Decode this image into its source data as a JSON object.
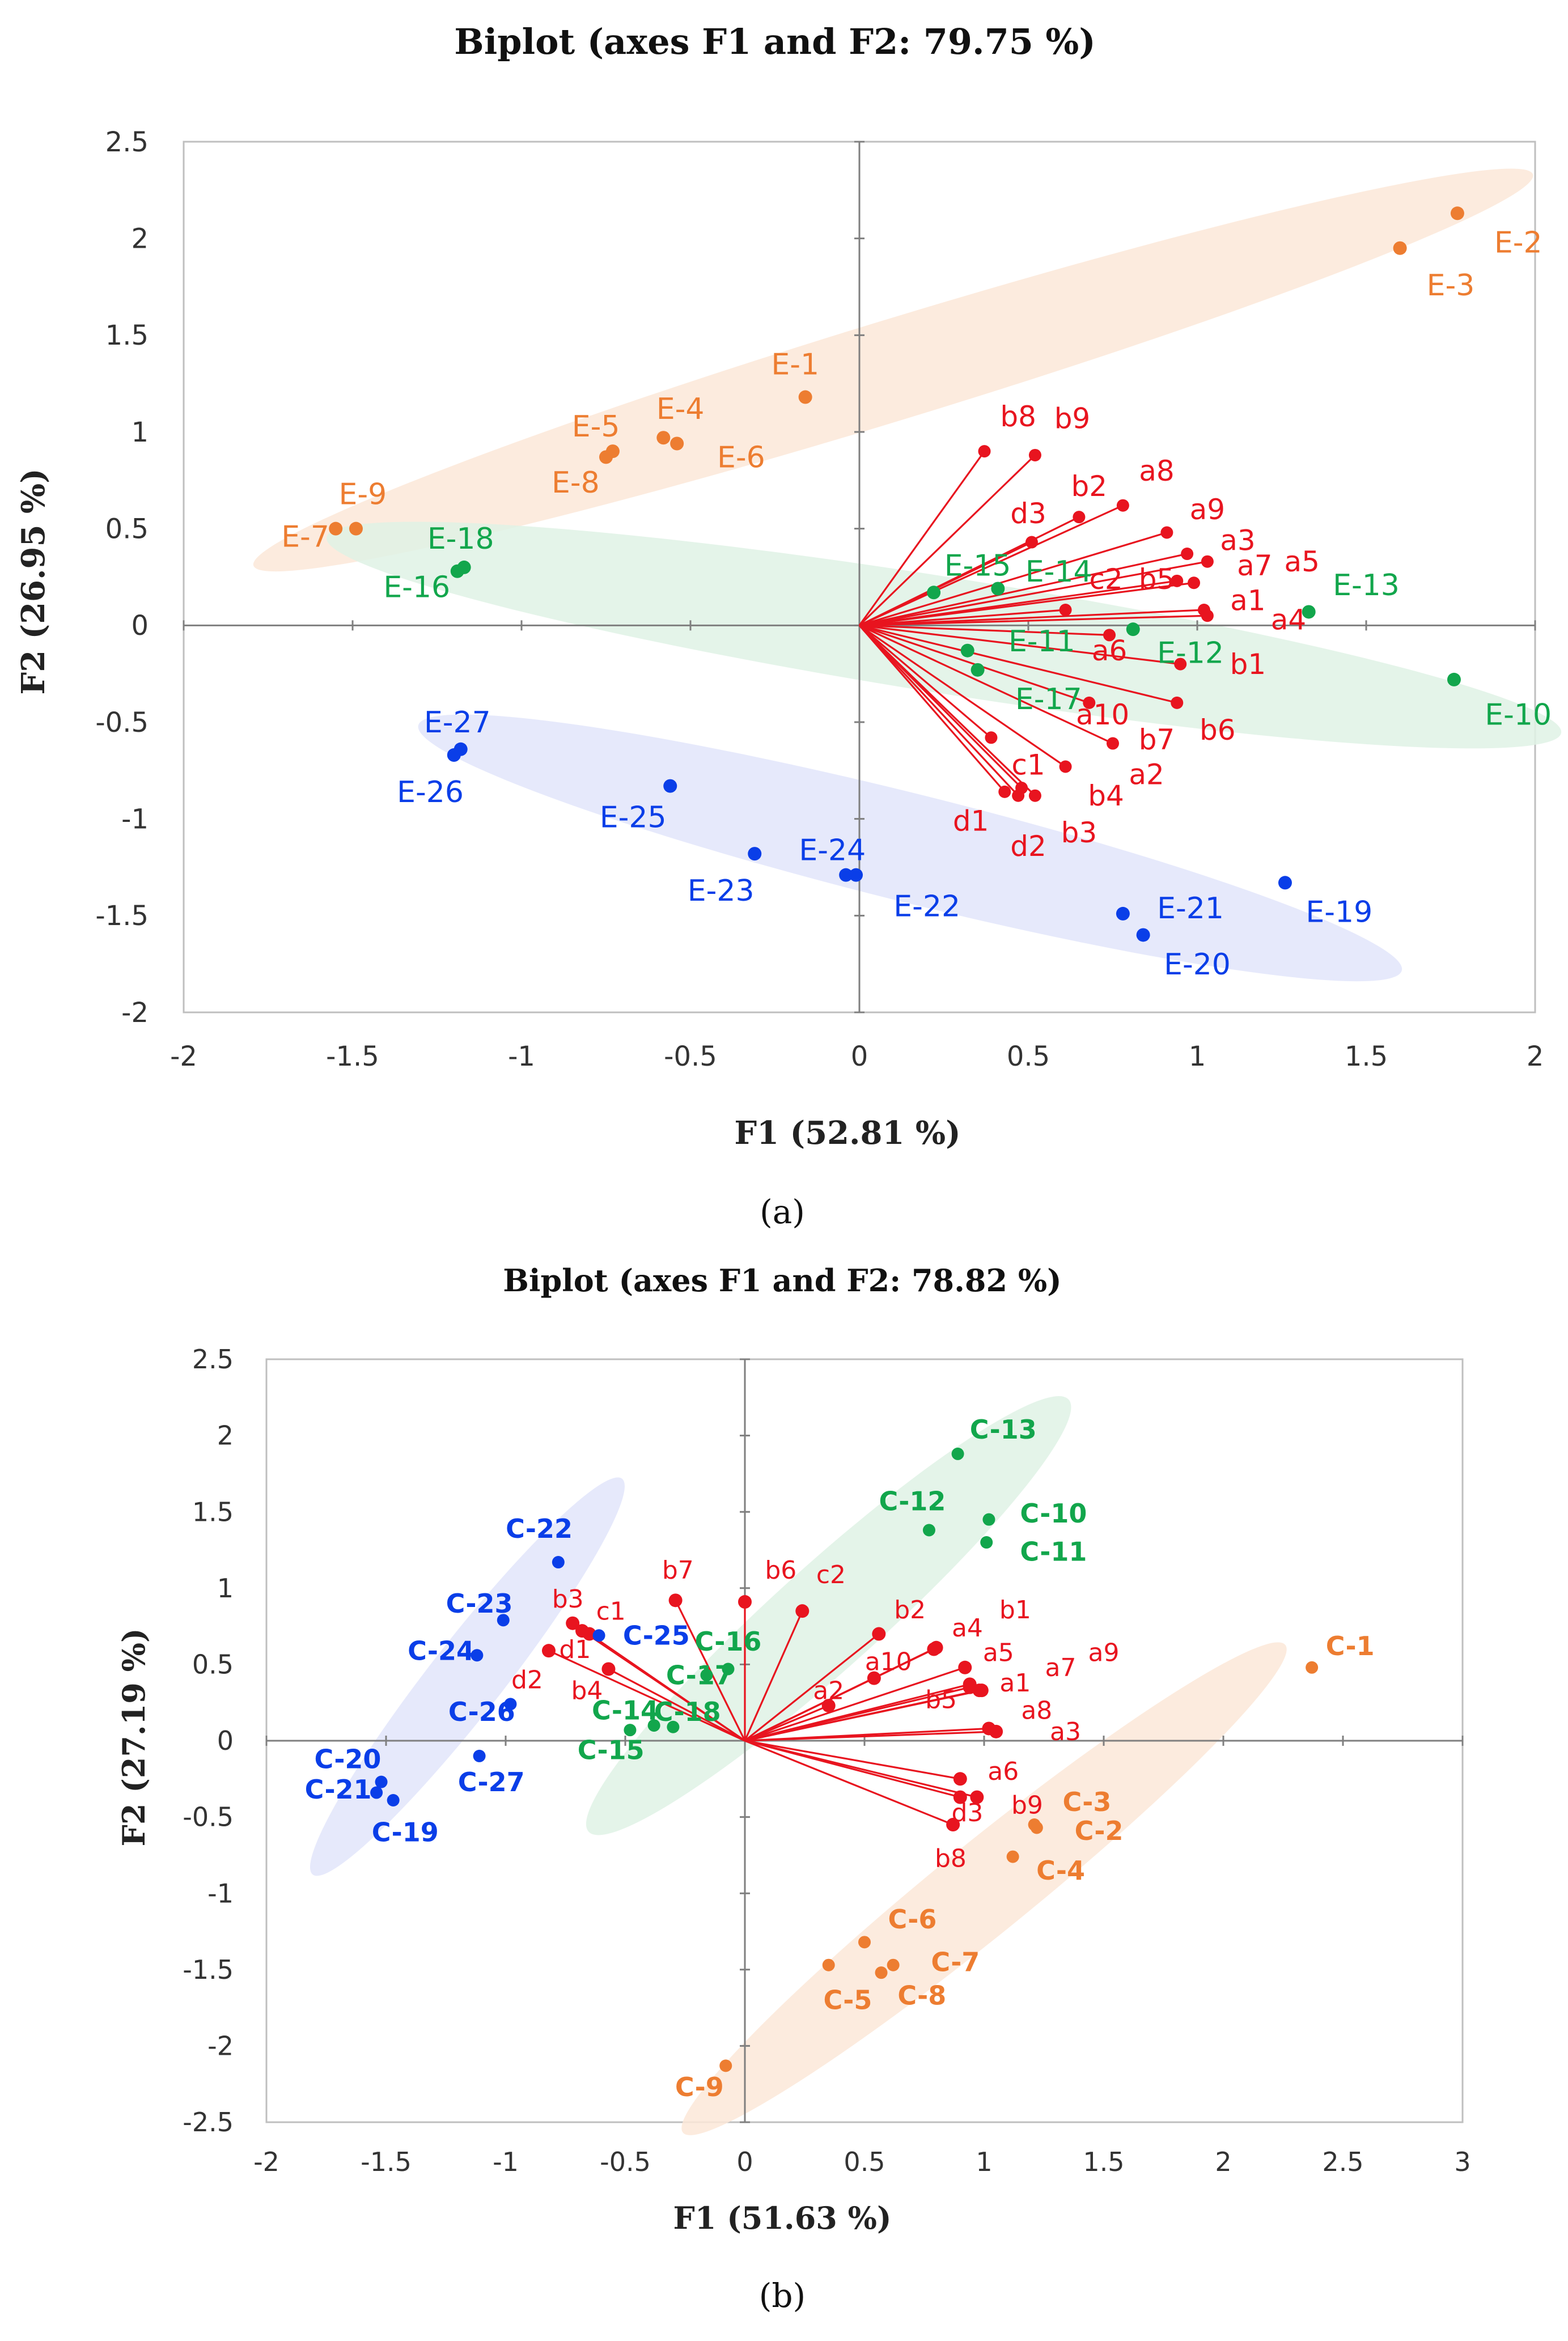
{
  "colors": {
    "orange": "#ED7D31",
    "green": "#12A64C",
    "blue": "#0A3EE8",
    "red": "#E8141F",
    "ellipse_orange": "#FCE7D8",
    "ellipse_green": "#DFF2E5",
    "ellipse_blue": "#E2E5FA"
  },
  "chart_data": [
    {
      "type": "scatter",
      "panel_label": "(a)",
      "title": "Biplot (axes F1 and F2: 79.75 %)",
      "xlabel": "F1 (52.81 %)",
      "ylabel": "F2 (26.95 %)",
      "xlim": [
        -2,
        2
      ],
      "ylim": [
        -2,
        2.5
      ],
      "xticks": [
        -2,
        -1.5,
        -1,
        -0.5,
        0,
        0.5,
        1,
        1.5,
        2
      ],
      "yticks": [
        -2,
        -1.5,
        -1,
        -0.5,
        0,
        0.5,
        1,
        1.5,
        2,
        2.5
      ],
      "xtick_labels": [
        "-2",
        "-1.5",
        "-1",
        "-0.5",
        "0",
        "0.5",
        "1",
        "1.5",
        "2"
      ],
      "ytick_labels": [
        "-2",
        "-1.5",
        "-1",
        "-0.5",
        "0",
        "0.5",
        "1",
        "1.5",
        "2",
        "2.5"
      ],
      "groups": [
        {
          "name": "orange",
          "color": "orange",
          "ellipse": {
            "cx": 0.1,
            "cy": 1.32,
            "rx": 1.98,
            "ry": 0.26,
            "angle_deg": 17
          }
        },
        {
          "name": "green",
          "color": "green",
          "ellipse": {
            "cx": 0.25,
            "cy": -0.05,
            "rx": 1.85,
            "ry": 0.3,
            "angle_deg": -9
          }
        },
        {
          "name": "blue",
          "color": "blue",
          "ellipse": {
            "cx": 0.15,
            "cy": -1.15,
            "rx": 1.5,
            "ry": 0.28,
            "angle_deg": -14
          }
        }
      ],
      "observations": [
        {
          "label": "E-1",
          "x": -0.16,
          "y": 1.18,
          "group": "orange",
          "lx": -0.19,
          "ly": 1.35
        },
        {
          "label": "E-2",
          "x": 1.77,
          "y": 2.13,
          "group": "orange",
          "lx": 1.95,
          "ly": 1.98
        },
        {
          "label": "E-3",
          "x": 1.6,
          "y": 1.95,
          "group": "orange",
          "lx": 1.75,
          "ly": 1.76
        },
        {
          "label": "E-4",
          "x": -0.58,
          "y": 0.97,
          "group": "orange",
          "lx": -0.53,
          "ly": 1.12
        },
        {
          "label": "E-5",
          "x": -0.73,
          "y": 0.9,
          "group": "orange",
          "lx": -0.78,
          "ly": 1.03
        },
        {
          "label": "E-6",
          "x": -0.54,
          "y": 0.94,
          "group": "orange",
          "lx": -0.35,
          "ly": 0.87
        },
        {
          "label": "E-7",
          "x": -1.55,
          "y": 0.5,
          "group": "orange",
          "lx": -1.64,
          "ly": 0.46
        },
        {
          "label": "E-8",
          "x": -0.75,
          "y": 0.87,
          "group": "orange",
          "lx": -0.84,
          "ly": 0.74
        },
        {
          "label": "E-9",
          "x": -1.49,
          "y": 0.5,
          "group": "orange",
          "lx": -1.47,
          "ly": 0.68
        },
        {
          "label": "E-10",
          "x": 1.76,
          "y": -0.28,
          "group": "green",
          "lx": 1.95,
          "ly": -0.46
        },
        {
          "label": "E-11",
          "x": 0.32,
          "y": -0.13,
          "group": "green",
          "lx": 0.54,
          "ly": -0.08
        },
        {
          "label": "E-12",
          "x": 0.81,
          "y": -0.02,
          "group": "green",
          "lx": 0.98,
          "ly": -0.14
        },
        {
          "label": "E-13",
          "x": 1.33,
          "y": 0.07,
          "group": "green",
          "lx": 1.5,
          "ly": 0.21
        },
        {
          "label": "E-14",
          "x": 0.41,
          "y": 0.19,
          "group": "green",
          "lx": 0.59,
          "ly": 0.28
        },
        {
          "label": "E-15",
          "x": 0.22,
          "y": 0.17,
          "group": "green",
          "lx": 0.35,
          "ly": 0.31
        },
        {
          "label": "E-16",
          "x": -1.19,
          "y": 0.28,
          "group": "green",
          "lx": -1.31,
          "ly": 0.2
        },
        {
          "label": "E-17",
          "x": 0.35,
          "y": -0.23,
          "group": "green",
          "lx": 0.56,
          "ly": -0.38
        },
        {
          "label": "E-18",
          "x": -1.17,
          "y": 0.3,
          "group": "green",
          "lx": -1.18,
          "ly": 0.45
        },
        {
          "label": "E-19",
          "x": 1.26,
          "y": -1.33,
          "group": "blue",
          "lx": 1.42,
          "ly": -1.48
        },
        {
          "label": "E-20",
          "x": 0.84,
          "y": -1.6,
          "group": "blue",
          "lx": 1.0,
          "ly": -1.75
        },
        {
          "label": "E-21",
          "x": 0.78,
          "y": -1.49,
          "group": "blue",
          "lx": 0.98,
          "ly": -1.46
        },
        {
          "label": "E-22",
          "x": -0.01,
          "y": -1.29,
          "group": "blue",
          "lx": 0.2,
          "ly": -1.45
        },
        {
          "label": "E-23",
          "x": -0.31,
          "y": -1.18,
          "group": "blue",
          "lx": -0.41,
          "ly": -1.37
        },
        {
          "label": "E-24",
          "x": -0.04,
          "y": -1.29,
          "group": "blue",
          "lx": -0.08,
          "ly": -1.16
        },
        {
          "label": "E-25",
          "x": -0.56,
          "y": -0.83,
          "group": "blue",
          "lx": -0.67,
          "ly": -0.99
        },
        {
          "label": "E-26",
          "x": -1.2,
          "y": -0.67,
          "group": "blue",
          "lx": -1.27,
          "ly": -0.86
        },
        {
          "label": "E-27",
          "x": -1.18,
          "y": -0.64,
          "group": "blue",
          "lx": -1.19,
          "ly": -0.5
        }
      ],
      "variables": [
        {
          "label": "b8",
          "x": 0.37,
          "y": 0.9,
          "lx": 0.47,
          "ly": 1.08
        },
        {
          "label": "b9",
          "x": 0.52,
          "y": 0.88,
          "lx": 0.63,
          "ly": 1.07
        },
        {
          "label": "a8",
          "x": 0.78,
          "y": 0.62,
          "lx": 0.88,
          "ly": 0.8
        },
        {
          "label": "b2",
          "x": 0.65,
          "y": 0.56,
          "lx": 0.68,
          "ly": 0.72
        },
        {
          "label": "a9",
          "x": 0.91,
          "y": 0.48,
          "lx": 1.03,
          "ly": 0.6
        },
        {
          "label": "d3",
          "x": 0.51,
          "y": 0.43,
          "lx": 0.5,
          "ly": 0.58
        },
        {
          "label": "a3",
          "x": 0.97,
          "y": 0.37,
          "lx": 1.12,
          "ly": 0.44
        },
        {
          "label": "a7",
          "x": 1.03,
          "y": 0.33,
          "lx": 1.17,
          "ly": 0.31
        },
        {
          "label": "a5",
          "x": 0.99,
          "y": 0.22,
          "lx": 1.31,
          "ly": 0.33
        },
        {
          "label": "b5",
          "x": 0.94,
          "y": 0.23,
          "lx": 0.88,
          "ly": 0.24
        },
        {
          "label": "c2",
          "x": 0.61,
          "y": 0.08,
          "lx": 0.73,
          "ly": 0.24
        },
        {
          "label": "a1",
          "x": 1.02,
          "y": 0.08,
          "lx": 1.15,
          "ly": 0.13
        },
        {
          "label": "a4",
          "x": 1.03,
          "y": 0.05,
          "lx": 1.27,
          "ly": 0.03
        },
        {
          "label": "a6",
          "x": 0.74,
          "y": -0.05,
          "lx": 0.74,
          "ly": -0.13
        },
        {
          "label": "b1",
          "x": 0.95,
          "y": -0.2,
          "lx": 1.15,
          "ly": -0.2
        },
        {
          "label": "b6",
          "x": 0.94,
          "y": -0.4,
          "lx": 1.06,
          "ly": -0.54
        },
        {
          "label": "a10",
          "x": 0.68,
          "y": -0.4,
          "lx": 0.72,
          "ly": -0.46
        },
        {
          "label": "b7",
          "x": 0.75,
          "y": -0.61,
          "lx": 0.88,
          "ly": -0.59
        },
        {
          "label": "c1",
          "x": 0.39,
          "y": -0.58,
          "lx": 0.5,
          "ly": -0.72
        },
        {
          "label": "a2",
          "x": 0.61,
          "y": -0.73,
          "lx": 0.85,
          "ly": -0.77
        },
        {
          "label": "b4",
          "x": 0.48,
          "y": -0.84,
          "lx": 0.73,
          "ly": -0.88
        },
        {
          "label": "d1",
          "x": 0.43,
          "y": -0.86,
          "lx": 0.33,
          "ly": -1.01
        },
        {
          "label": "b3",
          "x": 0.52,
          "y": -0.88,
          "lx": 0.65,
          "ly": -1.07
        },
        {
          "label": "d2",
          "x": 0.47,
          "y": -0.88,
          "lx": 0.5,
          "ly": -1.14
        }
      ]
    },
    {
      "type": "scatter",
      "panel_label": "(b)",
      "title": "Biplot (axes F1 and F2: 78.82 %)",
      "xlabel": "F1 (51.63 %)",
      "ylabel": "F2 (27.19 %)",
      "xlim": [
        -2,
        3
      ],
      "ylim": [
        -2.5,
        2.5
      ],
      "xticks": [
        -2,
        -1.5,
        -1,
        -0.5,
        0,
        0.5,
        1,
        1.5,
        2,
        2.5,
        3
      ],
      "yticks": [
        -2.5,
        -2,
        -1.5,
        -1,
        -0.5,
        0,
        0.5,
        1,
        1.5,
        2,
        2.5
      ],
      "xtick_labels": [
        "-2",
        "-1.5",
        "-1",
        "-0.5",
        "0",
        "0.5",
        "1",
        "1.5",
        "2",
        "2.5",
        "3"
      ],
      "ytick_labels": [
        "-2.5",
        "-2",
        "-1.5",
        "-1",
        "-0.5",
        "0",
        "0.5",
        "1",
        "1.5",
        "2",
        "2.5"
      ],
      "groups": [
        {
          "name": "orange",
          "color": "orange",
          "ellipse": {
            "cx": 1.0,
            "cy": -0.97,
            "rx": 1.62,
            "ry": 0.3,
            "angle_deg": 39
          }
        },
        {
          "name": "green",
          "color": "green",
          "ellipse": {
            "cx": 0.35,
            "cy": 0.82,
            "rx": 1.35,
            "ry": 0.34,
            "angle_deg": 42
          }
        },
        {
          "name": "blue",
          "color": "blue",
          "ellipse": {
            "cx": -1.16,
            "cy": 0.42,
            "rx": 1.05,
            "ry": 0.24,
            "angle_deg": 52
          }
        }
      ],
      "observations": [
        {
          "label": "C-1",
          "x": 2.37,
          "y": 0.48,
          "group": "orange",
          "lx": 2.53,
          "ly": 0.62
        },
        {
          "label": "C-2",
          "x": 1.22,
          "y": -0.57,
          "group": "orange",
          "lx": 1.48,
          "ly": -0.59
        },
        {
          "label": "C-3",
          "x": 1.21,
          "y": -0.55,
          "group": "orange",
          "lx": 1.43,
          "ly": -0.4
        },
        {
          "label": "C-4",
          "x": 1.12,
          "y": -0.76,
          "group": "orange",
          "lx": 1.32,
          "ly": -0.85
        },
        {
          "label": "C-5",
          "x": 0.35,
          "y": -1.47,
          "group": "orange",
          "lx": 0.43,
          "ly": -1.7
        },
        {
          "label": "C-6",
          "x": 0.5,
          "y": -1.32,
          "group": "orange",
          "lx": 0.7,
          "ly": -1.17
        },
        {
          "label": "C-7",
          "x": 0.62,
          "y": -1.47,
          "group": "orange",
          "lx": 0.88,
          "ly": -1.45
        },
        {
          "label": "C-8",
          "x": 0.57,
          "y": -1.52,
          "group": "orange",
          "lx": 0.74,
          "ly": -1.67
        },
        {
          "label": "C-9",
          "x": -0.08,
          "y": -2.13,
          "group": "orange",
          "lx": -0.19,
          "ly": -2.27
        },
        {
          "label": "C-10",
          "x": 1.02,
          "y": 1.45,
          "group": "green",
          "lx": 1.29,
          "ly": 1.49
        },
        {
          "label": "C-11",
          "x": 1.01,
          "y": 1.3,
          "group": "green",
          "lx": 1.29,
          "ly": 1.24
        },
        {
          "label": "C-12",
          "x": 0.77,
          "y": 1.38,
          "group": "green",
          "lx": 0.7,
          "ly": 1.57
        },
        {
          "label": "C-13",
          "x": 0.89,
          "y": 1.88,
          "group": "green",
          "lx": 1.08,
          "ly": 2.04
        },
        {
          "label": "C-14",
          "x": -0.38,
          "y": 0.1,
          "group": "green",
          "lx": -0.5,
          "ly": 0.2
        },
        {
          "label": "C-15",
          "x": -0.48,
          "y": 0.07,
          "group": "green",
          "lx": -0.56,
          "ly": -0.06
        },
        {
          "label": "C-16",
          "x": -0.16,
          "y": 0.43,
          "group": "green",
          "lx": -0.07,
          "ly": 0.65
        },
        {
          "label": "C-17",
          "x": -0.07,
          "y": 0.47,
          "group": "green",
          "lx": -0.19,
          "ly": 0.43
        },
        {
          "label": "C-18",
          "x": -0.3,
          "y": 0.09,
          "group": "green",
          "lx": -0.24,
          "ly": 0.19
        },
        {
          "label": "C-19",
          "x": -1.47,
          "y": -0.39,
          "group": "blue",
          "lx": -1.42,
          "ly": -0.6
        },
        {
          "label": "C-20",
          "x": -1.52,
          "y": -0.27,
          "group": "blue",
          "lx": -1.66,
          "ly": -0.12
        },
        {
          "label": "C-21",
          "x": -1.54,
          "y": -0.34,
          "group": "blue",
          "lx": -1.7,
          "ly": -0.32
        },
        {
          "label": "C-22",
          "x": -0.78,
          "y": 1.17,
          "group": "blue",
          "lx": -0.86,
          "ly": 1.39
        },
        {
          "label": "C-23",
          "x": -1.01,
          "y": 0.79,
          "group": "blue",
          "lx": -1.11,
          "ly": 0.9
        },
        {
          "label": "C-24",
          "x": -1.12,
          "y": 0.56,
          "group": "blue",
          "lx": -1.27,
          "ly": 0.59
        },
        {
          "label": "C-25",
          "x": -0.61,
          "y": 0.69,
          "group": "blue",
          "lx": -0.37,
          "ly": 0.69
        },
        {
          "label": "C-26",
          "x": -0.98,
          "y": 0.24,
          "group": "blue",
          "lx": -1.1,
          "ly": 0.19
        },
        {
          "label": "C-27",
          "x": -1.11,
          "y": -0.1,
          "group": "blue",
          "lx": -1.06,
          "ly": -0.27
        }
      ],
      "variables": [
        {
          "label": "b7",
          "x": -0.29,
          "y": 0.92,
          "lx": -0.28,
          "ly": 1.12
        },
        {
          "label": "b6",
          "x": 0.0,
          "y": 0.91,
          "lx": 0.15,
          "ly": 1.12
        },
        {
          "label": "c2",
          "x": 0.24,
          "y": 0.85,
          "lx": 0.36,
          "ly": 1.09
        },
        {
          "label": "b3",
          "x": -0.72,
          "y": 0.77,
          "lx": -0.74,
          "ly": 0.93
        },
        {
          "label": "c1",
          "x": -0.65,
          "y": 0.7,
          "lx": -0.56,
          "ly": 0.85
        },
        {
          "label": "b2",
          "x": 0.56,
          "y": 0.7,
          "lx": 0.69,
          "ly": 0.86
        },
        {
          "label": "b1",
          "x": 0.8,
          "y": 0.61,
          "lx": 1.13,
          "ly": 0.86
        },
        {
          "label": "a4",
          "x": 0.79,
          "y": 0.6,
          "lx": 0.93,
          "ly": 0.74
        },
        {
          "label": "a9",
          "x": 0.94,
          "y": 0.35,
          "lx": 1.5,
          "ly": 0.58
        },
        {
          "label": "a7",
          "x": 0.98,
          "y": 0.33,
          "lx": 1.32,
          "ly": 0.48
        },
        {
          "label": "a5",
          "x": 0.92,
          "y": 0.48,
          "lx": 1.06,
          "ly": 0.58
        },
        {
          "label": "d1",
          "x": -0.68,
          "y": 0.72,
          "lx": -0.71,
          "ly": 0.6
        },
        {
          "label": "a10",
          "x": 0.54,
          "y": 0.41,
          "lx": 0.6,
          "ly": 0.52
        },
        {
          "label": "a1",
          "x": 0.94,
          "y": 0.37,
          "lx": 1.13,
          "ly": 0.38
        },
        {
          "label": "d2",
          "x": -0.82,
          "y": 0.59,
          "lx": -0.91,
          "ly": 0.4
        },
        {
          "label": "b4",
          "x": -0.57,
          "y": 0.47,
          "lx": -0.66,
          "ly": 0.33
        },
        {
          "label": "a2",
          "x": 0.35,
          "y": 0.23,
          "lx": 0.35,
          "ly": 0.33
        },
        {
          "label": "b5",
          "x": 0.99,
          "y": 0.33,
          "lx": 0.82,
          "ly": 0.27
        },
        {
          "label": "a8",
          "x": 1.02,
          "y": 0.08,
          "lx": 1.22,
          "ly": 0.2
        },
        {
          "label": "a3",
          "x": 1.05,
          "y": 0.06,
          "lx": 1.34,
          "ly": 0.06
        },
        {
          "label": "a6",
          "x": 0.9,
          "y": -0.25,
          "lx": 1.08,
          "ly": -0.2
        },
        {
          "label": "d3",
          "x": 0.97,
          "y": -0.37,
          "lx": 0.93,
          "ly": -0.47
        },
        {
          "label": "b9",
          "x": 0.9,
          "y": -0.37,
          "lx": 1.18,
          "ly": -0.42
        },
        {
          "label": "b8",
          "x": 0.87,
          "y": -0.55,
          "lx": 0.86,
          "ly": -0.77
        }
      ]
    }
  ]
}
